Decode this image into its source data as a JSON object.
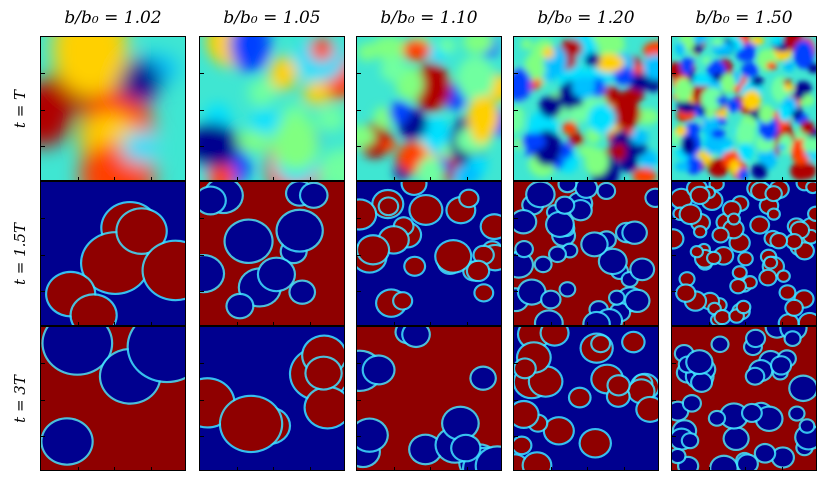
{
  "figure": {
    "columns": [
      {
        "title": "b/b₀ = 1.02"
      },
      {
        "title": "b/b₀ = 1.05"
      },
      {
        "title": "b/b₀ = 1.10"
      },
      {
        "title": "b/b₀ = 1.20"
      },
      {
        "title": "b/b₀ = 1.50"
      }
    ],
    "rows": [
      {
        "label": "t = T"
      },
      {
        "label": "t = 1.5T"
      },
      {
        "label": "t = 3T"
      }
    ],
    "colors": {
      "jet_low": "#00008f",
      "jet_high": "#8f0000",
      "colormap": "jet"
    }
  }
}
